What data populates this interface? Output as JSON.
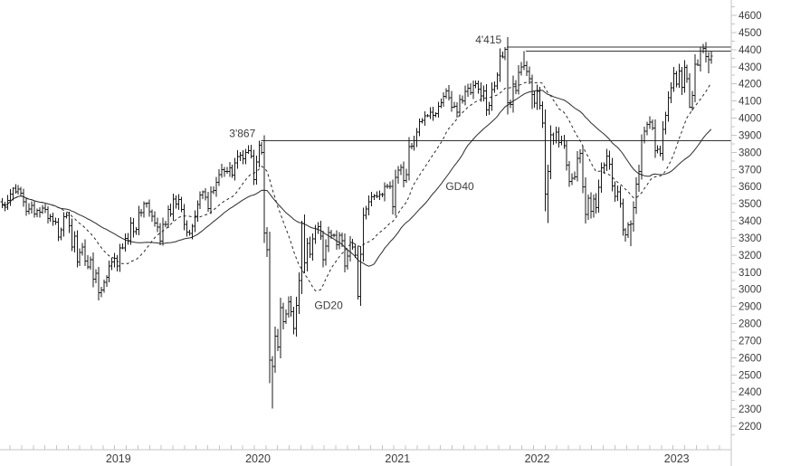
{
  "chart_data": {
    "type": "ohlc-bar",
    "title": "",
    "xlabel": "",
    "ylabel": "",
    "x_axis": {
      "year_labels": [
        "2019",
        "2020",
        "2021",
        "2022",
        "2023"
      ],
      "minor_tick_unit": "month",
      "weeks_per_month": 4.348,
      "first_month_week_offset": 2.9,
      "year_label_every_nth_month_from": 8
    },
    "y_axis": {
      "min": 2200,
      "max": 4600,
      "label_step": 100,
      "minor_tick_step": 50,
      "tick_labels": [
        4600,
        4500,
        4400,
        4300,
        4200,
        4100,
        4000,
        3900,
        3800,
        3700,
        3600,
        3500,
        3400,
        3300,
        3200,
        3100,
        3000,
        2900,
        2800,
        2700,
        2600,
        2500,
        2400,
        2300,
        2200
      ],
      "side": "right",
      "grid": false
    },
    "weekly_closes": [
      3495,
      3480,
      3520,
      3555,
      3590,
      3570,
      3585,
      3560,
      3510,
      3455,
      3470,
      3490,
      3440,
      3460,
      3450,
      3475,
      3465,
      3412,
      3425,
      3398,
      3393,
      3305,
      3346,
      3425,
      3433,
      3370,
      3247,
      3310,
      3160,
      3214,
      3247,
      3165,
      3130,
      3173,
      3059,
      3094,
      2980,
      2995,
      3041,
      3070,
      3135,
      3160,
      3180,
      3135,
      3241,
      3241,
      3298,
      3284,
      3386,
      3336,
      3351,
      3447,
      3448,
      3500,
      3502,
      3452,
      3427,
      3386,
      3364,
      3280,
      3378,
      3379,
      3467,
      3440,
      3528,
      3497,
      3524,
      3467,
      3379,
      3333,
      3327,
      3369,
      3427,
      3495,
      3550,
      3569,
      3537,
      3472,
      3570,
      3576,
      3624,
      3669,
      3700,
      3688,
      3687,
      3710,
      3666,
      3739,
      3776,
      3782,
      3761,
      3800,
      3809,
      3779,
      3641,
      3744,
      3841,
      3800,
      3329,
      3232,
      2586,
      2549,
      2727,
      2662,
      2892,
      2810,
      2856,
      2928,
      2870,
      2770,
      2906,
      3050,
      3384,
      3153,
      3269,
      3204,
      3294,
      3353,
      3366,
      3311,
      3174,
      3252,
      3332,
      3316,
      3315,
      3261,
      3316,
      3284,
      3137,
      3195,
      3273,
      3246,
      3199,
      2958,
      3204,
      3432,
      3468,
      3512,
      3539,
      3546,
      3544,
      3553,
      3553,
      3600,
      3600,
      3602,
      3481,
      3655,
      3696,
      3713,
      3636,
      3669,
      3833,
      3837,
      3867,
      3919,
      3978,
      3987,
      4013,
      4014,
      4034,
      4017,
      4026,
      4070,
      4089,
      4127,
      4158,
      4120,
      4064,
      4068,
      4035,
      4109,
      4100,
      4156,
      4175,
      4148,
      4190,
      4201,
      4170,
      4130,
      4158,
      4048,
      4073,
      4166,
      4188,
      4251,
      4363,
      4356,
      4402,
      4090,
      4080,
      4199,
      4162,
      4266,
      4298,
      4306,
      4272,
      4229,
      4137,
      4087,
      4155,
      4074,
      3970,
      3556,
      3687,
      3902,
      3867,
      3919,
      3858,
      3867,
      3840,
      3725,
      3629,
      3649,
      3657,
      3765,
      3795,
      3599,
      3438,
      3533,
      3455,
      3527,
      3477,
      3596,
      3708,
      3725,
      3777,
      3730,
      3604,
      3544,
      3570,
      3500,
      3348,
      3318,
      3375,
      3381,
      3476,
      3613,
      3688,
      3868,
      3924,
      3962,
      3977,
      3942,
      3810,
      3818,
      3793,
      3934,
      4017,
      4120,
      4178,
      4258,
      4198,
      4275,
      4179,
      4295,
      4229,
      4064,
      4131,
      4315,
      4310,
      4390,
      4408,
      4359,
      4340,
      4362
    ],
    "wick_overrides": {
      "4": {
        "high": 3596
      },
      "53": {
        "high": 3514
      },
      "96": {
        "high": 3867
      },
      "97": {
        "high": 3860
      },
      "98": {
        "low": 3270
      },
      "100": {
        "low": 2450
      },
      "101": {
        "low": 2302
      },
      "112": {
        "high": 3400
      },
      "133": {
        "low": 2940
      },
      "146": {
        "low": 3437
      },
      "188": {
        "high": 4415
      },
      "189": {
        "low": 4022
      },
      "195": {
        "high": 4392
      },
      "198": {
        "low": 4053
      },
      "203": {
        "low": 3455
      },
      "204": {
        "low": 3387
      },
      "218": {
        "low": 3384
      },
      "226": {
        "high": 3820
      },
      "233": {
        "low": 3279
      },
      "235": {
        "low": 3251
      },
      "257": {
        "low": 4057
      },
      "261": {
        "high": 4415
      },
      "262": {
        "high": 4434
      },
      "264": {
        "low": 4262
      },
      "265": {
        "high": 4392
      }
    },
    "moving_averages": [
      {
        "name": "GD40",
        "window": 40,
        "style": "solid"
      },
      {
        "name": "GD20",
        "window": 20,
        "style": "dashed"
      }
    ],
    "ma_labels": [
      {
        "text": "GD20",
        "week": 122,
        "value": 2905
      },
      {
        "text": "GD40",
        "week": 171,
        "value": 3600
      }
    ],
    "h_lines": [
      {
        "level": 4415,
        "label": "4'415",
        "from_week": 188
      },
      {
        "level": 4392,
        "label": "",
        "from_week": 195
      },
      {
        "level": 3867,
        "label": "3'867",
        "from_week": 96
      }
    ],
    "legend_position": "none"
  },
  "colors": {
    "background": "#ffffff",
    "bars": "#1a1a1a",
    "ma_line": "#2a2a2a",
    "h_line": "#333333",
    "axis": "#c4c4c4",
    "tick": "#c4c4c4",
    "tick_label": "#3c3c3c",
    "annotation": "#3d3d3d"
  }
}
